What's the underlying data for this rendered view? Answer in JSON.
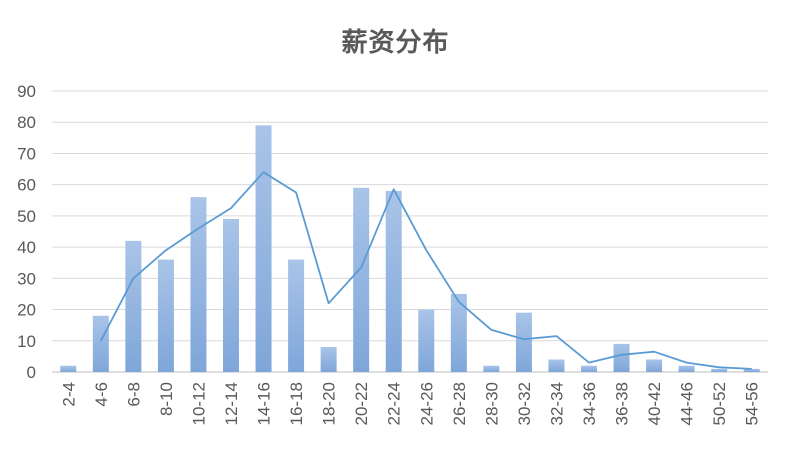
{
  "chart_data": {
    "type": "bar",
    "title": "薪资分布",
    "xlabel": "",
    "ylabel": "",
    "ylim": [
      0,
      90
    ],
    "yticks": [
      0,
      10,
      20,
      30,
      40,
      50,
      60,
      70,
      80,
      90
    ],
    "grid": true,
    "categories": [
      "2-4",
      "4-6",
      "6-8",
      "8-10",
      "10-12",
      "12-14",
      "14-16",
      "16-18",
      "18-20",
      "20-22",
      "22-24",
      "24-26",
      "26-28",
      "28-30",
      "30-32",
      "32-34",
      "34-36",
      "36-38",
      "40-42",
      "44-46",
      "50-52",
      "54-56"
    ],
    "series": [
      {
        "type": "bar",
        "values": [
          2,
          18,
          42,
          36,
          56,
          49,
          79,
          36,
          8,
          59,
          58,
          20,
          25,
          2,
          19,
          4,
          2,
          9,
          4,
          2,
          1,
          1
        ]
      },
      {
        "type": "line",
        "values": [
          null,
          10,
          30,
          39,
          46,
          52.5,
          64,
          57.5,
          22,
          33.5,
          58.5,
          39,
          22.5,
          13.5,
          10.5,
          11.5,
          3,
          5.5,
          6.5,
          3,
          1.5,
          1
        ]
      }
    ],
    "colors": {
      "bar_top": "#a9c4e8",
      "bar_bottom": "#7fa6d9",
      "line": "#5b9bd5",
      "grid": "#d9d9d9",
      "axis": "#bfbfbf"
    }
  }
}
